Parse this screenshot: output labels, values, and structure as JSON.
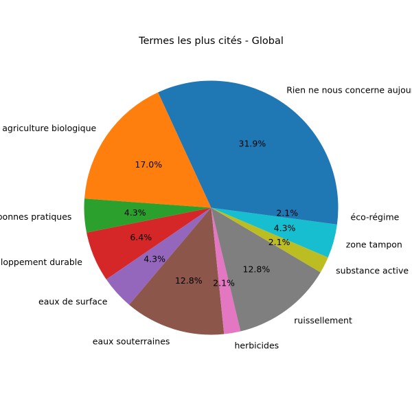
{
  "chart_data": {
    "type": "pie",
    "title": "Termes les plus cités - Global",
    "categories": [
      "Rien ne nous concerne aujourd'hui",
      "agriculture biologique",
      "bonnes pratiques",
      "développement durable",
      "eaux de surface",
      "eaux souterraines",
      "herbicides",
      "ruissellement",
      "substance active",
      "zone tampon",
      "éco-régime"
    ],
    "values": [
      31.9,
      17.0,
      4.3,
      6.4,
      4.3,
      12.8,
      2.1,
      12.8,
      2.1,
      4.3,
      2.1
    ],
    "value_labels": [
      "31.9%",
      "17.0%",
      "4.3%",
      "6.4%",
      "4.3%",
      "12.8%",
      "2.1%",
      "12.8%",
      "2.1%",
      "4.3%",
      "2.1%"
    ],
    "colors": [
      "#1f77b4",
      "#ff7f0e",
      "#2ca02c",
      "#d62728",
      "#9467bd",
      "#8c564b",
      "#e377c2",
      "#7f7f7f",
      "#bcbd22",
      "#17becf",
      "#1f77b4"
    ],
    "start_angle_deg": 0,
    "direction": "counterclockwise",
    "legend": "none"
  }
}
